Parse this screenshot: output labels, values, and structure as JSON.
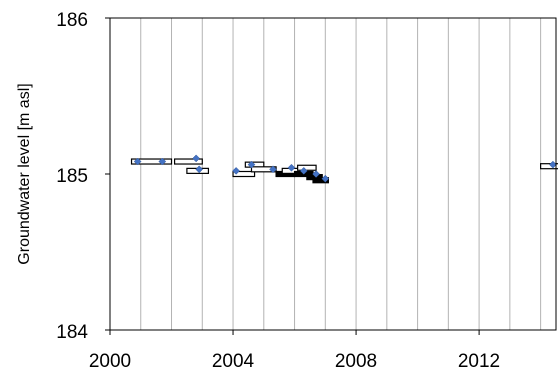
{
  "chart_data": {
    "type": "scatter",
    "title": "",
    "xlabel": "",
    "ylabel": "Groundwater level [m asl]",
    "xlim": [
      2000,
      2014.5
    ],
    "ylim": [
      184,
      186
    ],
    "x_ticks": [
      2000,
      2004,
      2008,
      2012
    ],
    "x_tick_labels": [
      "2000",
      "2004",
      "2008",
      "2012"
    ],
    "y_ticks": [
      184,
      185,
      186
    ],
    "y_tick_labels": [
      "184",
      "185",
      "186"
    ],
    "x_grid_step_years": 1,
    "grid": true,
    "legend": "none",
    "series": [
      {
        "marker": "diamond",
        "color": "#4472c4",
        "points": [
          {
            "x": 2000.9,
            "y": 185.08
          },
          {
            "x": 2001.7,
            "y": 185.08
          },
          {
            "x": 2002.8,
            "y": 185.1
          },
          {
            "x": 2002.9,
            "y": 185.03
          },
          {
            "x": 2004.1,
            "y": 185.02
          },
          {
            "x": 2004.6,
            "y": 185.06
          },
          {
            "x": 2005.3,
            "y": 185.03
          },
          {
            "x": 2005.9,
            "y": 185.04
          },
          {
            "x": 2006.3,
            "y": 185.02
          },
          {
            "x": 2006.7,
            "y": 185.0
          },
          {
            "x": 2007.0,
            "y": 184.97
          },
          {
            "x": 2014.4,
            "y": 185.06
          }
        ]
      }
    ],
    "range_segments": [
      {
        "x_start": 2000.7,
        "x_end": 2002.0,
        "y": 185.08,
        "filled": false
      },
      {
        "x_start": 2002.1,
        "x_end": 2003.0,
        "y": 185.08,
        "filled": false
      },
      {
        "x_start": 2002.5,
        "x_end": 2003.2,
        "y": 185.02,
        "filled": false
      },
      {
        "x_start": 2004.0,
        "x_end": 2004.7,
        "y": 185.0,
        "filled": false
      },
      {
        "x_start": 2004.4,
        "x_end": 2005.0,
        "y": 185.06,
        "filled": false
      },
      {
        "x_start": 2004.6,
        "x_end": 2005.4,
        "y": 185.03,
        "filled": false
      },
      {
        "x_start": 2005.4,
        "x_end": 2006.0,
        "y": 185.0,
        "filled": true
      },
      {
        "x_start": 2005.6,
        "x_end": 2006.2,
        "y": 185.02,
        "filled": false
      },
      {
        "x_start": 2006.0,
        "x_end": 2006.6,
        "y": 185.0,
        "filled": true
      },
      {
        "x_start": 2006.1,
        "x_end": 2006.7,
        "y": 185.04,
        "filled": false
      },
      {
        "x_start": 2006.4,
        "x_end": 2006.9,
        "y": 184.98,
        "filled": true
      },
      {
        "x_start": 2006.6,
        "x_end": 2007.1,
        "y": 184.96,
        "filled": true
      },
      {
        "x_start": 2014.0,
        "x_end": 2014.6,
        "y": 185.05,
        "filled": false
      }
    ]
  },
  "colors": {
    "background": "#ffffff",
    "grid": "#b3b3b3",
    "axis": "#000000",
    "marker": "#4472c4",
    "segment_fill": "#ffffff",
    "segment_fill_dense": "#000000"
  }
}
